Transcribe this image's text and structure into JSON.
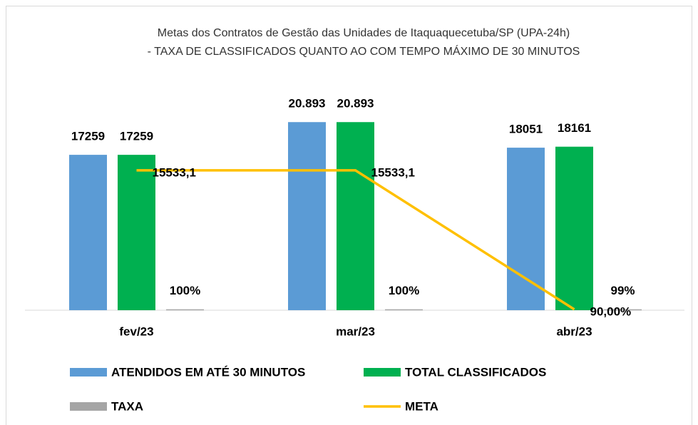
{
  "chart_data": {
    "type": "bar",
    "title": "Metas dos Contratos de Gestão das Unidades de Itaquaquecetuba/SP (UPA-24h)",
    "subtitle": "- TAXA DE CLASSIFICADOS QUANTO AO COM TEMPO MÁXIMO DE 30 MINUTOS",
    "categories": [
      "fev/23",
      "mar/23",
      "abr/23"
    ],
    "ylim": [
      0,
      24000
    ],
    "series": [
      {
        "name": "ATENDIDOS EM ATÉ 30 MINUTOS",
        "color": "#5b9bd5",
        "values": [
          17259,
          20893,
          18051
        ],
        "value_labels": [
          "17259",
          "20.893",
          "18051"
        ]
      },
      {
        "name": "TOTAL CLASSIFICADOS",
        "color": "#00b050",
        "values": [
          17259,
          20893,
          18161
        ],
        "value_labels": [
          "17259",
          "20.893",
          "18161"
        ]
      },
      {
        "name": "TAXA",
        "color": "#a5a5a5",
        "values": [
          100,
          100,
          99
        ],
        "value_labels": [
          "100%",
          "100%",
          "99%"
        ]
      },
      {
        "name": "META",
        "type": "line",
        "color": "#ffc000",
        "values": [
          15533.1,
          15533.1,
          90
        ],
        "value_labels": [
          "15533,1",
          "15533,1",
          "90,00%"
        ]
      }
    ]
  }
}
